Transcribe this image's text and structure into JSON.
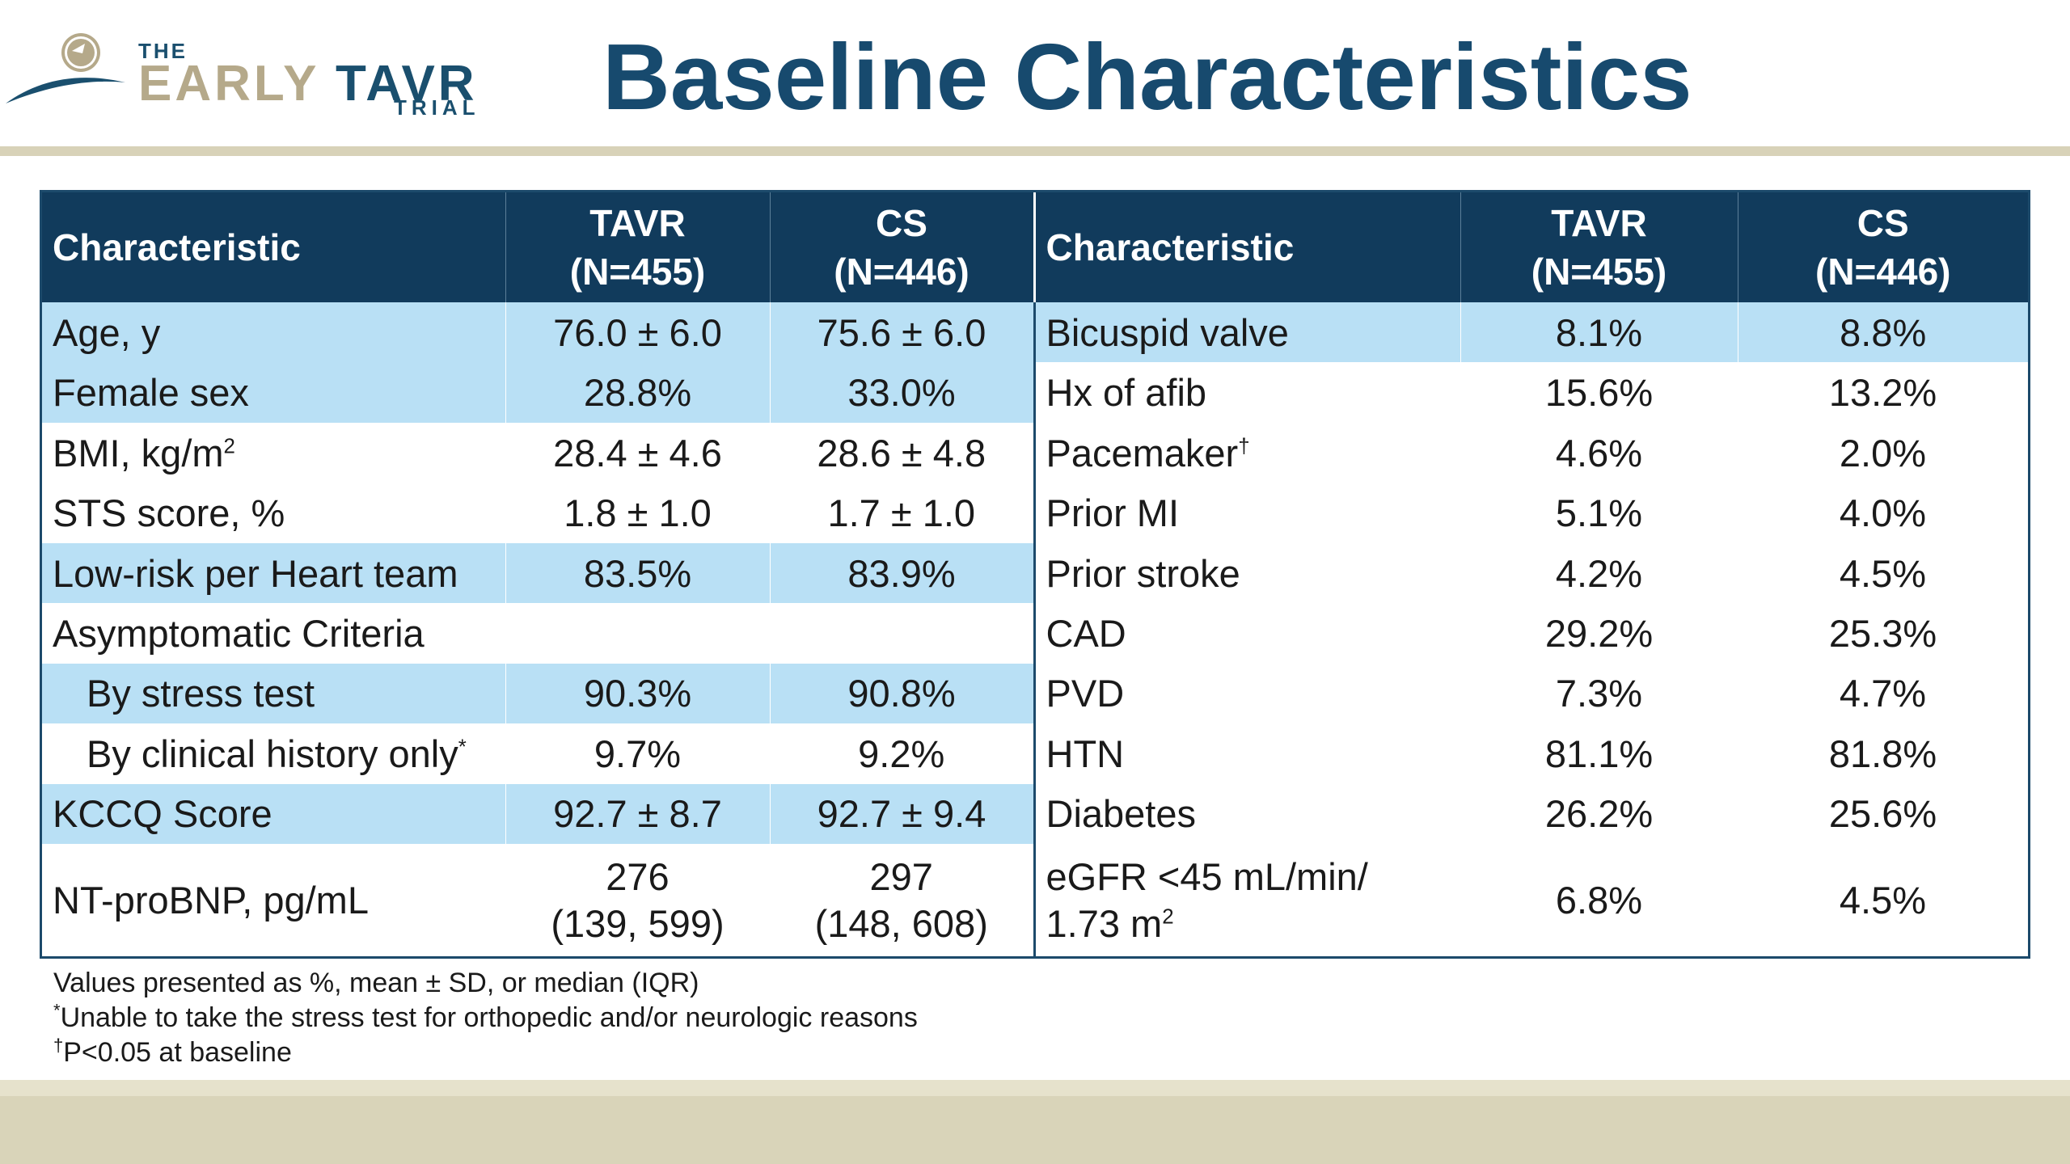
{
  "logo": {
    "the": "THE",
    "early": "EARLY",
    "tavr": "TAVR",
    "trial": "TRIAL"
  },
  "title": "Baseline Characteristics",
  "table": {
    "headers": {
      "characteristic": "Characteristic",
      "tavr_line1": "TAVR",
      "tavr_line2": "(N=455)",
      "cs_line1": "CS",
      "cs_line2": "(N=446)"
    },
    "left_rows": [
      {
        "label": "Age, y",
        "tavr": "76.0 ± 6.0",
        "cs": "75.6 ± 6.0",
        "highlight": true
      },
      {
        "label": "Female sex",
        "tavr": "28.8%",
        "cs": "33.0%",
        "highlight": true
      },
      {
        "label": "BMI, kg/m",
        "label_sup": "2",
        "tavr": "28.4 ± 4.6",
        "cs": "28.6 ± 4.8",
        "highlight": false
      },
      {
        "label": "STS score, %",
        "tavr": "1.8 ± 1.0",
        "cs": "1.7 ± 1.0",
        "highlight": false
      },
      {
        "label": "Low-risk per Heart team",
        "tavr": "83.5%",
        "cs": "83.9%",
        "highlight": true
      },
      {
        "label": "Asymptomatic Criteria",
        "tavr": "",
        "cs": "",
        "highlight": false
      },
      {
        "label": "By stress test",
        "tavr": "90.3%",
        "cs": "90.8%",
        "highlight": true
      },
      {
        "label": "By clinical history only",
        "label_sup": "*",
        "tavr": "9.7%",
        "cs": "9.2%",
        "highlight": false
      },
      {
        "label": "KCCQ Score",
        "tavr": "92.7 ± 8.7",
        "cs": "92.7 ± 9.4",
        "highlight": true
      },
      {
        "label": "NT-proBNP, pg/mL",
        "tavr_line1": "276",
        "tavr_line2": "(139, 599)",
        "cs_line1": "297",
        "cs_line2": "(148, 608)",
        "highlight": false
      }
    ],
    "right_rows": [
      {
        "label": "Bicuspid valve",
        "tavr": "8.1%",
        "cs": "8.8%",
        "highlight": true
      },
      {
        "label": "Hx of afib",
        "tavr": "15.6%",
        "cs": "13.2%",
        "highlight": false
      },
      {
        "label": "Pacemaker",
        "label_sup": "†",
        "tavr": "4.6%",
        "cs": "2.0%",
        "highlight": false
      },
      {
        "label": "Prior MI",
        "tavr": "5.1%",
        "cs": "4.0%",
        "highlight": false
      },
      {
        "label": "Prior stroke",
        "tavr": "4.2%",
        "cs": "4.5%",
        "highlight": false
      },
      {
        "label": "CAD",
        "tavr": "29.2%",
        "cs": "25.3%",
        "highlight": false
      },
      {
        "label": "PVD",
        "tavr": "7.3%",
        "cs": "4.7%",
        "highlight": false
      },
      {
        "label": "HTN",
        "tavr": "81.1%",
        "cs": "81.8%",
        "highlight": false
      },
      {
        "label": "Diabetes",
        "tavr": "26.2%",
        "cs": "25.6%",
        "highlight": false
      },
      {
        "label_line1": "eGFR <45 mL/min/",
        "label_line2": "1.73 m",
        "label_sup": "2",
        "tavr": "6.8%",
        "cs": "4.5%",
        "highlight": false
      }
    ]
  },
  "footnotes": {
    "line1": "Values presented as %, mean ± SD, or median (IQR)",
    "line2_mark": "*",
    "line2": "Unable to take the stress test for orthopedic and/or neurologic reasons",
    "line3_mark": "†",
    "line3": "P<0.05 at baseline"
  },
  "colors": {
    "title": "#174a6e",
    "header_bg": "#113b5c",
    "highlight_row": "#b9e0f5",
    "logo_gold": "#b5a98a",
    "logo_navy": "#1a4f6e",
    "rule": "#d8d2b8",
    "footer_band": "#d9d4b9"
  }
}
